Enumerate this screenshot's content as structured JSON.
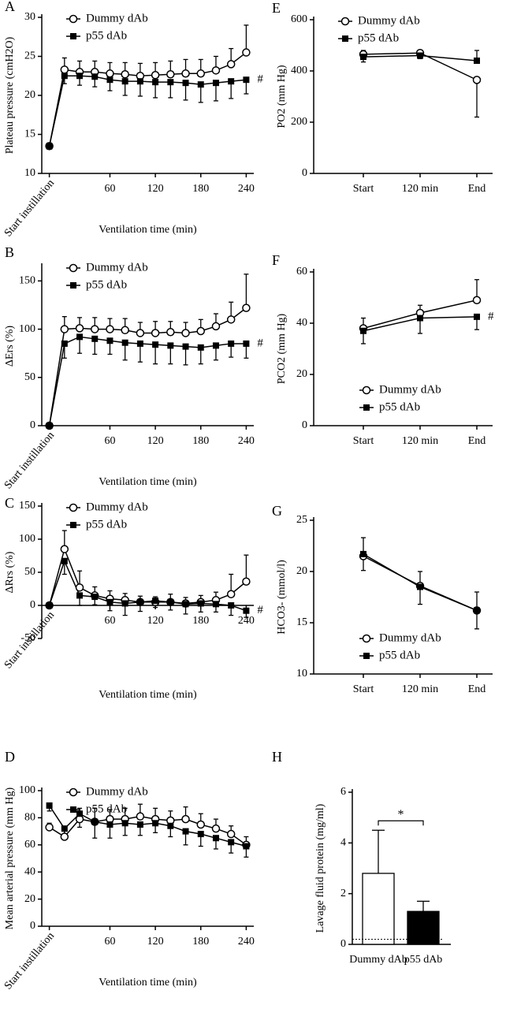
{
  "chart_data": [
    {
      "panel": "A",
      "type": "line",
      "ylabel": "Plateau pressure (cmH2O)",
      "xlabel": "Ventilation time (min)",
      "x": [
        -20,
        0,
        20,
        40,
        60,
        80,
        100,
        120,
        140,
        160,
        180,
        200,
        220,
        240
      ],
      "xlim": [
        -30,
        250
      ],
      "xticks": [
        {
          "value": -20,
          "label": "Start instillation"
        },
        60,
        120,
        180,
        240
      ],
      "ylim": [
        10,
        30
      ],
      "yticks": [
        10,
        15,
        20,
        25,
        30
      ],
      "legend": "upper left",
      "annotation": "#",
      "series": [
        {
          "name": "Dummy dAb",
          "color": "#000000",
          "marker": "circle-open",
          "error_side": "up",
          "values": [
            13.5,
            23.3,
            23.0,
            23.0,
            22.8,
            22.7,
            22.5,
            22.6,
            22.7,
            22.8,
            22.8,
            23.2,
            24.0,
            25.5
          ],
          "errors": [
            0.4,
            1.5,
            1.4,
            1.4,
            1.4,
            1.5,
            1.6,
            1.6,
            1.7,
            1.8,
            1.8,
            1.8,
            2.0,
            3.5
          ]
        },
        {
          "name": "p55 dAb",
          "color": "#000000",
          "marker": "square-filled",
          "error_side": "down",
          "values": [
            13.5,
            22.5,
            22.5,
            22.4,
            22.0,
            21.8,
            21.8,
            21.7,
            21.7,
            21.6,
            21.4,
            21.6,
            21.8,
            22.0
          ],
          "errors": [
            0.4,
            1.0,
            1.2,
            1.3,
            1.4,
            1.8,
            1.9,
            2.0,
            2.0,
            2.2,
            2.3,
            2.3,
            2.2,
            1.8
          ]
        }
      ]
    },
    {
      "panel": "B",
      "type": "line",
      "ylabel": "ΔErs (%)",
      "xlabel": "Ventilation time (min)",
      "x": [
        -20,
        0,
        20,
        40,
        60,
        80,
        100,
        120,
        140,
        160,
        180,
        200,
        220,
        240
      ],
      "xlim": [
        -30,
        250
      ],
      "xticks": [
        {
          "value": -20,
          "label": "Start instillation"
        },
        60,
        120,
        180,
        240
      ],
      "ylim": [
        0,
        165
      ],
      "yticks": [
        0,
        50,
        100,
        150
      ],
      "legend": "upper left",
      "annotation": "#",
      "series": [
        {
          "name": "Dummy dAb",
          "color": "#000000",
          "marker": "circle-open",
          "error_side": "up",
          "values": [
            0,
            100,
            101,
            100,
            100,
            99,
            96,
            96,
            97,
            96,
            98,
            103,
            110,
            122
          ],
          "errors": [
            0,
            13,
            11,
            12,
            11,
            12,
            11,
            12,
            11,
            11,
            12,
            13,
            18,
            35
          ]
        },
        {
          "name": "p55 dAb",
          "color": "#000000",
          "marker": "square-filled",
          "error_side": "down",
          "values": [
            0,
            85,
            92,
            90,
            88,
            86,
            85,
            84,
            83,
            82,
            81,
            83,
            85,
            85
          ],
          "errors": [
            0,
            15,
            17,
            16,
            14,
            18,
            19,
            20,
            19,
            19,
            17,
            15,
            14,
            15
          ]
        }
      ]
    },
    {
      "panel": "C",
      "type": "line",
      "ylabel": "ΔRrs (%)",
      "xlabel": "Ventilation time (min)",
      "x": [
        -20,
        0,
        20,
        40,
        60,
        80,
        100,
        120,
        140,
        160,
        180,
        200,
        220,
        240
      ],
      "xlim": [
        -30,
        250
      ],
      "xticks": [
        {
          "value": -20,
          "label": "Start instillation"
        },
        60,
        120,
        180,
        240
      ],
      "ylim": [
        -50,
        150
      ],
      "yticks": [
        -50,
        0,
        50,
        100,
        150
      ],
      "legend": "upper left",
      "annotation": "#",
      "series": [
        {
          "name": "Dummy dAb",
          "color": "#000000",
          "marker": "circle-open",
          "error_side": "up",
          "values": [
            0,
            85,
            27,
            15,
            10,
            8,
            5,
            5,
            5,
            3,
            5,
            8,
            17,
            36
          ],
          "errors": [
            0,
            28,
            25,
            13,
            12,
            10,
            9,
            8,
            12,
            9,
            10,
            12,
            30,
            40
          ]
        },
        {
          "name": "p55 dAb",
          "color": "#000000",
          "marker": "square-filled",
          "error_side": "down",
          "values": [
            0,
            67,
            15,
            13,
            5,
            3,
            5,
            7,
            5,
            2,
            3,
            2,
            0,
            -8
          ],
          "errors": [
            0,
            20,
            15,
            12,
            13,
            18,
            14,
            10,
            12,
            15,
            13,
            12,
            15,
            10
          ]
        }
      ]
    },
    {
      "panel": "D",
      "type": "line",
      "ylabel": "Mean arterial pressure (mm Hg)",
      "xlabel": "Ventilation time (min)",
      "x": [
        -20,
        0,
        20,
        40,
        60,
        80,
        100,
        120,
        140,
        160,
        180,
        200,
        220,
        240
      ],
      "xlim": [
        -30,
        250
      ],
      "xticks": [
        {
          "value": -20,
          "label": "Start instillation"
        },
        60,
        120,
        180,
        240
      ],
      "ylim": [
        0,
        100
      ],
      "yticks": [
        0,
        20,
        40,
        60,
        80,
        100
      ],
      "legend": "upper left",
      "series": [
        {
          "name": "Dummy dAb",
          "color": "#000000",
          "marker": "circle-open",
          "error_side": "up",
          "values": [
            73,
            66,
            79,
            77,
            79,
            79,
            81,
            79,
            78,
            79,
            75,
            72,
            68,
            60
          ],
          "errors": [
            3,
            5,
            8,
            10,
            7,
            8,
            9,
            8,
            7,
            9,
            8,
            7,
            6,
            6
          ]
        },
        {
          "name": "p55 dAb",
          "color": "#000000",
          "marker": "square-filled",
          "error_side": "down",
          "values": [
            89,
            72,
            83,
            77,
            75,
            76,
            75,
            76,
            74,
            70,
            68,
            65,
            62,
            59
          ],
          "errors": [
            4,
            5,
            10,
            12,
            10,
            9,
            8,
            7,
            8,
            10,
            9,
            8,
            8,
            8
          ]
        }
      ]
    },
    {
      "panel": "E",
      "type": "line",
      "ylabel": "PO2 (mm Hg)",
      "categories": [
        "Start",
        "120 min",
        "End"
      ],
      "ylim": [
        0,
        600
      ],
      "yticks": [
        0,
        200,
        400,
        600
      ],
      "legend": "upper left",
      "series": [
        {
          "name": "Dummy dAb",
          "color": "#000000",
          "marker": "circle-open",
          "error_side": "down",
          "values": [
            465,
            470,
            365
          ],
          "errors": [
            30,
            22,
            145
          ]
        },
        {
          "name": "p55 dAb",
          "color": "#000000",
          "marker": "square-filled",
          "error_side": "up",
          "values": [
            455,
            460,
            440
          ],
          "errors": [
            25,
            18,
            40
          ]
        }
      ]
    },
    {
      "panel": "F",
      "type": "line",
      "ylabel": "PCO2 (mm Hg)",
      "categories": [
        "Start",
        "120 min",
        "End"
      ],
      "ylim": [
        0,
        60
      ],
      "yticks": [
        0,
        20,
        40,
        60
      ],
      "legend": "lower left",
      "annotation": "#",
      "series": [
        {
          "name": "Dummy dAb",
          "color": "#000000",
          "marker": "circle-open",
          "error_side": "up",
          "values": [
            38,
            44,
            49
          ],
          "errors": [
            4,
            3,
            8
          ]
        },
        {
          "name": "p55 dAb",
          "color": "#000000",
          "marker": "square-filled",
          "error_side": "down",
          "values": [
            37,
            42,
            42.5
          ],
          "errors": [
            5,
            6,
            5
          ]
        }
      ]
    },
    {
      "panel": "G",
      "type": "line",
      "ylabel": "HCO3- (mmol/l)",
      "categories": [
        "Start",
        "120 min",
        "End"
      ],
      "ylim": [
        10,
        25
      ],
      "yticks": [
        10,
        15,
        20,
        25
      ],
      "legend": "lower left",
      "series": [
        {
          "name": "Dummy dAb",
          "color": "#000000",
          "marker": "circle-open",
          "error_side": "up",
          "values": [
            21.5,
            18.6,
            16.2
          ],
          "errors": [
            1.8,
            1.4,
            1.8
          ]
        },
        {
          "name": "p55 dAb",
          "color": "#000000",
          "marker": "square-filled",
          "error_side": "down",
          "values": [
            21.7,
            18.5,
            16.2
          ],
          "errors": [
            1.6,
            1.7,
            1.8
          ]
        }
      ]
    },
    {
      "panel": "H",
      "type": "bar",
      "ylabel": "Lavage fluid protein (mg/ml)",
      "categories": [
        "Dummy dAb",
        "p55 dAb"
      ],
      "values": [
        2.8,
        1.3
      ],
      "errors": [
        1.7,
        0.4
      ],
      "colors": [
        "#ffffff",
        "#000000"
      ],
      "reference_line": 0.2,
      "annotation": "*",
      "ylim": [
        0,
        6
      ],
      "yticks": [
        0,
        2,
        4,
        6
      ]
    }
  ]
}
